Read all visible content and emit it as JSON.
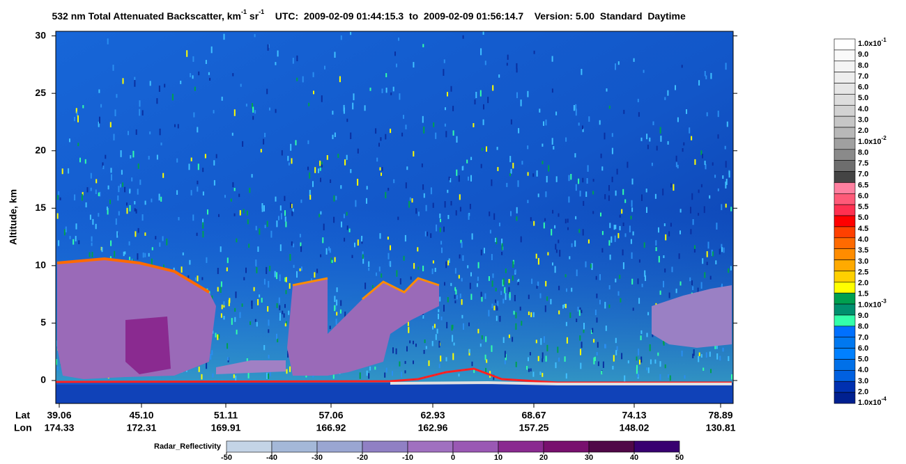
{
  "chart_data": {
    "type": "heatmap",
    "title_parts": [
      "532 nm Total Attenuated Backscatter, km",
      "-1",
      " sr",
      "-1",
      "    UTC:  2009-02-09 01:44:15.3  to  2009-02-09 01:56:14.7    Version: 5.00  Standard  Daytime"
    ],
    "y_label": "Altitude, km",
    "ylim": [
      -2,
      30.4
    ],
    "yticks": [
      0,
      5,
      10,
      15,
      20,
      25,
      30
    ],
    "x_row_labels": [
      "Lat",
      "Lon"
    ],
    "lat": [
      "39.06",
      "45.10",
      "51.11",
      "57.06",
      "62.93",
      "68.67",
      "74.13",
      "78.89"
    ],
    "lon": [
      "174.33",
      "172.31",
      "169.91",
      "166.92",
      "162.96",
      "157.25",
      "148.02",
      "130.81"
    ],
    "backscatter_scale": {
      "labels": [
        {
          "label": "1.0x10",
          "exponent": "-1"
        },
        {
          "label": "9.0"
        },
        {
          "label": "8.0"
        },
        {
          "label": "7.0"
        },
        {
          "label": "6.0"
        },
        {
          "label": "5.0"
        },
        {
          "label": "4.0"
        },
        {
          "label": "3.0"
        },
        {
          "label": "2.0"
        },
        {
          "label": "1.0x10",
          "exponent": "-2"
        },
        {
          "label": "8.0"
        },
        {
          "label": "7.5"
        },
        {
          "label": "7.0"
        },
        {
          "label": "6.5"
        },
        {
          "label": "6.0"
        },
        {
          "label": "5.5"
        },
        {
          "label": "5.0"
        },
        {
          "label": "4.5"
        },
        {
          "label": "4.0"
        },
        {
          "label": "3.5"
        },
        {
          "label": "3.0"
        },
        {
          "label": "2.5"
        },
        {
          "label": "2.0"
        },
        {
          "label": "1.5"
        },
        {
          "label": "1.0x10",
          "exponent": "-3"
        },
        {
          "label": "9.0"
        },
        {
          "label": "8.0"
        },
        {
          "label": "7.0"
        },
        {
          "label": "6.0"
        },
        {
          "label": "5.0"
        },
        {
          "label": "4.0"
        },
        {
          "label": "3.0"
        },
        {
          "label": "2.0"
        },
        {
          "label": "1.0x10",
          "exponent": "-4"
        }
      ],
      "colors": [
        "#ffffff",
        "#fafafa",
        "#f4f4f4",
        "#eeeeee",
        "#e6e6e6",
        "#dddddd",
        "#d2d2d2",
        "#c6c6c6",
        "#b8b8b8",
        "#a0a0a0",
        "#8a8a8a",
        "#6e6e6e",
        "#444444",
        "#ff80a0",
        "#ff5a78",
        "#ff3050",
        "#ff0000",
        "#ff4000",
        "#ff6a00",
        "#ff8c00",
        "#ffaa00",
        "#ffd000",
        "#ffff00",
        "#00a050",
        "#00906e",
        "#33ffaa",
        "#0070ff",
        "#0078f0",
        "#0080ff",
        "#0070e8",
        "#0060e0",
        "#0030b0",
        "#002090"
      ]
    },
    "radar_scale": {
      "title": "Radar_Reflectivity",
      "ticks": [
        -50,
        -40,
        -30,
        -20,
        -10,
        0,
        10,
        20,
        30,
        40,
        50
      ],
      "colors": [
        "#c4d4e6",
        "#a4b8d8",
        "#9aa6d2",
        "#9080c4",
        "#a070c0",
        "#9a58b4",
        "#8a2a90",
        "#78106e",
        "#500848",
        "#380070"
      ]
    }
  }
}
